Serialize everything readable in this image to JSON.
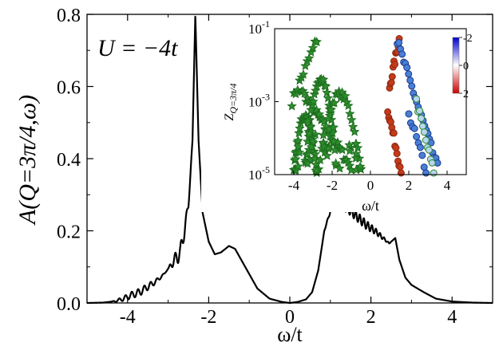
{
  "chart_data": [
    {
      "type": "line",
      "xlabel": "ω/t",
      "ylabel": "A(Q=3π/4,ω)",
      "xlim": [
        -5,
        5
      ],
      "ylim": [
        0,
        0.8
      ],
      "x_ticks": [
        "-4",
        "-2",
        "0",
        "2",
        "4"
      ],
      "y_ticks": [
        "0.0",
        "0.2",
        "0.4",
        "0.6",
        "0.8"
      ],
      "annotation": "U = −4t",
      "grid": false,
      "series": [
        {
          "color": "#000000",
          "points": [
            [
              -5.0,
              0.0
            ],
            [
              -4.6,
              0.001
            ],
            [
              -4.3,
              0.005
            ],
            [
              -4.1,
              0.012
            ],
            [
              -3.9,
              0.022
            ],
            [
              -3.7,
              0.03
            ],
            [
              -3.5,
              0.045
            ],
            [
              -3.3,
              0.06
            ],
            [
              -3.1,
              0.08
            ],
            [
              -2.9,
              0.11
            ],
            [
              -2.7,
              0.14
            ],
            [
              -2.6,
              0.2
            ],
            [
              -2.5,
              0.27
            ],
            [
              -2.4,
              0.45
            ],
            [
              -2.33,
              0.8
            ],
            [
              -2.25,
              0.45
            ],
            [
              -2.15,
              0.25
            ],
            [
              -2.0,
              0.17
            ],
            [
              -1.85,
              0.135
            ],
            [
              -1.7,
              0.14
            ],
            [
              -1.5,
              0.158
            ],
            [
              -1.35,
              0.15
            ],
            [
              -1.2,
              0.12
            ],
            [
              -1.0,
              0.08
            ],
            [
              -0.8,
              0.04
            ],
            [
              -0.5,
              0.012
            ],
            [
              -0.2,
              0.003
            ],
            [
              0.0,
              0.0
            ],
            [
              0.2,
              0.003
            ],
            [
              0.4,
              0.01
            ],
            [
              0.55,
              0.03
            ],
            [
              0.7,
              0.09
            ],
            [
              0.85,
              0.2
            ],
            [
              1.0,
              0.255
            ],
            [
              1.15,
              0.28
            ],
            [
              1.3,
              0.27
            ],
            [
              1.5,
              0.255
            ],
            [
              1.7,
              0.235
            ],
            [
              1.9,
              0.215
            ],
            [
              2.1,
              0.2
            ],
            [
              2.3,
              0.18
            ],
            [
              2.45,
              0.165
            ],
            [
              2.6,
              0.18
            ],
            [
              2.7,
              0.12
            ],
            [
              2.85,
              0.07
            ],
            [
              3.0,
              0.05
            ],
            [
              3.3,
              0.03
            ],
            [
              3.6,
              0.012
            ],
            [
              4.0,
              0.004
            ],
            [
              4.5,
              0.001
            ],
            [
              5.0,
              0.0
            ]
          ],
          "ripples": [
            {
              "x": [
                -4.4,
                -3.0
              ],
              "period": 0.155,
              "amplitude": 0.01
            },
            {
              "x": [
                -3.0,
                -2.4
              ],
              "period": 0.14,
              "amplitude": 0.022
            },
            {
              "x": [
                0.8,
                2.5
              ],
              "period": 0.1,
              "amplitude": 0.013
            }
          ]
        }
      ]
    },
    {
      "type": "scatter",
      "inset": true,
      "xlabel": "ω/t",
      "ylabel": "Z_Q=3π/4",
      "xlim": [
        -5,
        5
      ],
      "ylim": [
        1e-05,
        0.1
      ],
      "log_y": true,
      "x_ticks": [
        "-4",
        "-2",
        "0",
        "2",
        "4"
      ],
      "y_ticks": [
        {
          "value": 1e-05,
          "base": "10",
          "exp": "-5"
        },
        {
          "value": 0.001,
          "base": "10",
          "exp": "-3"
        },
        {
          "value": 0.1,
          "base": "10",
          "exp": "-1"
        }
      ],
      "colorbar": {
        "ticks": [
          "-2",
          "0",
          "2"
        ],
        "range": [
          -2,
          2
        ],
        "colors": [
          "#0000cc",
          "#ffffff",
          "#cc0000"
        ]
      },
      "series": [
        {
          "marker": "star",
          "fill": "#2e8b2e",
          "stroke": "#1a6a1a",
          "branches": [
            {
              "x": [
                -4.1,
                -2.8
              ],
              "logZ": [
                -3.0,
                -1.3
              ],
              "n": 14
            },
            {
              "x": [
                -3.6,
                -1.0
              ],
              "logZ": [
                -2.7,
                -4.8
              ],
              "n": 34
            }
          ],
          "arches": [
            {
              "center": -2.6,
              "width": 0.8,
              "peak": -2.4,
              "base": -4.7
            },
            {
              "center": -1.6,
              "width": 1.1,
              "peak": -2.8,
              "base": -4.9
            },
            {
              "center": -3.4,
              "width": 0.6,
              "peak": -3.4,
              "base": -4.9
            }
          ]
        },
        {
          "marker": "circle",
          "fill": "#c43a1a",
          "stroke": "#8b2a10",
          "branches": [
            {
              "x": [
                1.0,
                1.5
              ],
              "logZ": [
                -2.6,
                -1.3
              ],
              "n": 12
            },
            {
              "x": [
                0.9,
                1.6
              ],
              "logZ": [
                -3.2,
                -4.9
              ],
              "n": 14
            }
          ]
        },
        {
          "marker": "circle",
          "fill": "#4a7fd6",
          "stroke": "#1a3a8a",
          "branches": [
            {
              "x": [
                1.4,
                3.5
              ],
              "logZ": [
                -1.35,
                -4.8
              ],
              "n": 26
            },
            {
              "x": [
                2.0,
                2.9
              ],
              "logZ": [
                -3.3,
                -4.9
              ],
              "n": 10
            }
          ]
        },
        {
          "marker": "circle",
          "fill": "#b9d5f0",
          "stroke": "#2a8a2a",
          "branches": [
            {
              "x": [
                2.4,
                3.3
              ],
              "logZ": [
                -3.0,
                -4.95
              ],
              "n": 12
            }
          ]
        }
      ]
    }
  ]
}
